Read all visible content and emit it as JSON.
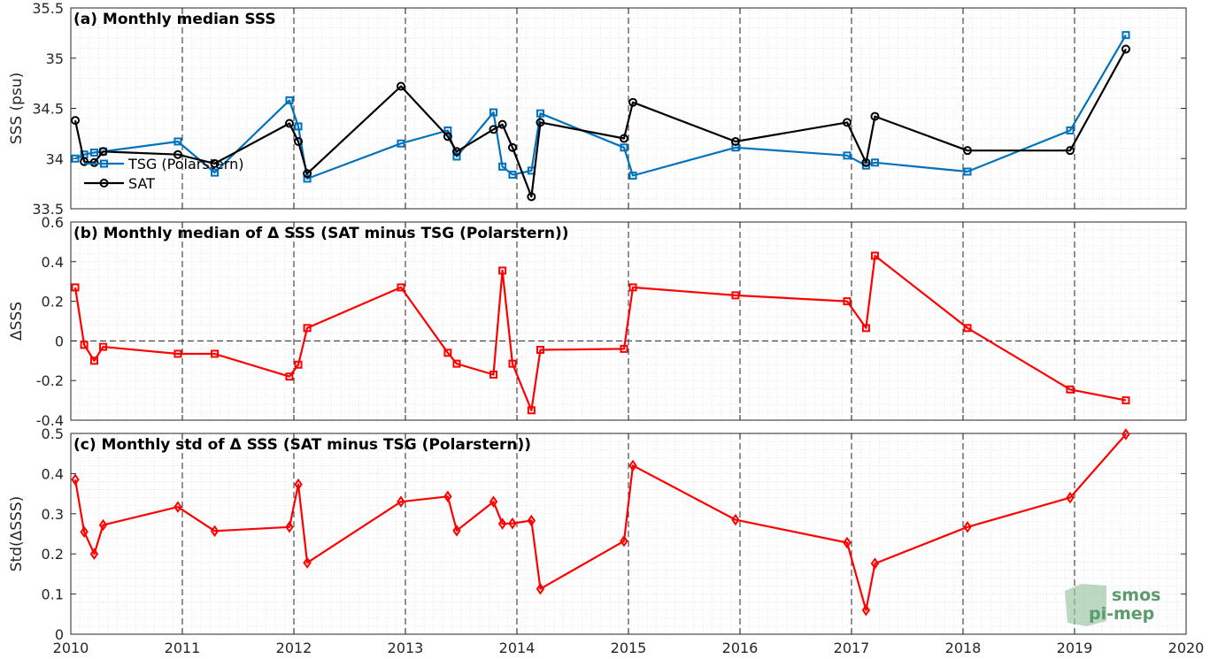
{
  "chart_data": [
    {
      "type": "line",
      "panel_title": "(a) Monthly median SSS",
      "xlabel": "",
      "ylabel": "SSS (psu)",
      "xlim": [
        2010,
        2020
      ],
      "ylim": [
        33.5,
        35.5
      ],
      "yticks": [
        "33.5",
        "34",
        "34.5",
        "35",
        "35.5"
      ],
      "grid": true,
      "legend_position": "lower-left",
      "series": [
        {
          "name": "TSG (Polarstern)",
          "color": "#0072bd",
          "marker": "square",
          "x": [
            2010.04,
            2010.12,
            2010.21,
            2010.29,
            2010.96,
            2011.29,
            2011.96,
            2012.04,
            2012.12,
            2012.96,
            2013.38,
            2013.46,
            2013.79,
            2013.87,
            2013.96,
            2014.13,
            2014.21,
            2014.96,
            2015.04,
            2015.96,
            2016.96,
            2017.13,
            2017.21,
            2018.04,
            2018.96,
            2019.46
          ],
          "y": [
            34.0,
            34.04,
            34.06,
            34.07,
            34.17,
            33.86,
            34.58,
            34.32,
            33.8,
            34.15,
            34.28,
            34.02,
            34.46,
            33.92,
            33.84,
            33.88,
            34.45,
            34.11,
            33.83,
            34.11,
            34.03,
            33.93,
            33.96,
            33.87,
            34.28,
            35.23
          ]
        },
        {
          "name": "SAT",
          "color": "#000000",
          "marker": "circle",
          "x": [
            2010.04,
            2010.12,
            2010.21,
            2010.29,
            2010.96,
            2011.29,
            2011.96,
            2012.04,
            2012.12,
            2012.96,
            2013.38,
            2013.46,
            2013.79,
            2013.87,
            2013.96,
            2014.13,
            2014.21,
            2014.96,
            2015.04,
            2015.96,
            2016.96,
            2017.13,
            2017.21,
            2018.04,
            2018.96,
            2019.46
          ],
          "y": [
            34.38,
            33.97,
            33.96,
            34.07,
            34.04,
            33.95,
            34.35,
            34.17,
            33.85,
            34.72,
            34.22,
            34.07,
            34.29,
            34.34,
            34.11,
            33.62,
            34.36,
            34.2,
            34.56,
            34.17,
            34.36,
            33.96,
            34.42,
            34.08,
            34.08,
            35.09
          ]
        }
      ]
    },
    {
      "type": "line",
      "panel_title": "(b) Monthly median of Δ SSS (SAT minus TSG (Polarstern))",
      "xlabel": "",
      "ylabel": "ΔSSS",
      "xlim": [
        2010,
        2020
      ],
      "ylim": [
        -0.4,
        0.6
      ],
      "yticks": [
        "-0.4",
        "-0.2",
        "0",
        "0.2",
        "0.4",
        "0.6"
      ],
      "zero_line": true,
      "grid": true,
      "series": [
        {
          "color": "#ff0000",
          "marker": "square",
          "x": [
            2010.04,
            2010.12,
            2010.21,
            2010.29,
            2010.96,
            2011.29,
            2011.96,
            2012.04,
            2012.12,
            2012.96,
            2013.38,
            2013.46,
            2013.79,
            2013.87,
            2013.96,
            2014.13,
            2014.21,
            2014.96,
            2015.04,
            2015.96,
            2016.96,
            2017.13,
            2017.21,
            2018.04,
            2018.96,
            2019.46
          ],
          "y": [
            0.27,
            -0.02,
            -0.1,
            -0.03,
            -0.065,
            -0.065,
            -0.18,
            -0.12,
            0.065,
            0.27,
            -0.06,
            -0.115,
            -0.17,
            0.355,
            -0.115,
            -0.35,
            -0.045,
            -0.04,
            0.27,
            0.23,
            0.2,
            0.065,
            0.43,
            0.065,
            -0.245,
            -0.3
          ]
        }
      ]
    },
    {
      "type": "line",
      "panel_title": "(c) Monthly std of Δ SSS (SAT minus TSG (Polarstern))",
      "xlabel": "",
      "ylabel": "Std(ΔSSS)",
      "xlim": [
        2010,
        2020
      ],
      "ylim": [
        0,
        0.5
      ],
      "yticks": [
        "0",
        "0.1",
        "0.2",
        "0.3",
        "0.4",
        "0.5"
      ],
      "xticks": [
        "2010",
        "2011",
        "2012",
        "2013",
        "2014",
        "2015",
        "2016",
        "2017",
        "2018",
        "2019",
        "2020"
      ],
      "grid": true,
      "series": [
        {
          "color": "#ff0000",
          "marker": "diamond",
          "x": [
            2010.04,
            2010.12,
            2010.21,
            2010.29,
            2010.96,
            2011.29,
            2011.96,
            2012.04,
            2012.12,
            2012.96,
            2013.38,
            2013.46,
            2013.79,
            2013.87,
            2013.96,
            2014.13,
            2014.21,
            2014.96,
            2015.04,
            2015.96,
            2016.96,
            2017.13,
            2017.21,
            2018.04,
            2018.96,
            2019.46
          ],
          "y": [
            0.385,
            0.255,
            0.2,
            0.272,
            0.317,
            0.257,
            0.267,
            0.373,
            0.178,
            0.33,
            0.343,
            0.258,
            0.33,
            0.275,
            0.276,
            0.283,
            0.113,
            0.232,
            0.42,
            0.285,
            0.228,
            0.06,
            0.176,
            0.267,
            0.34,
            0.498
          ]
        }
      ]
    }
  ],
  "logo": {
    "line1": "smos",
    "line2": "pi-mep",
    "color": "#3f8a55"
  }
}
